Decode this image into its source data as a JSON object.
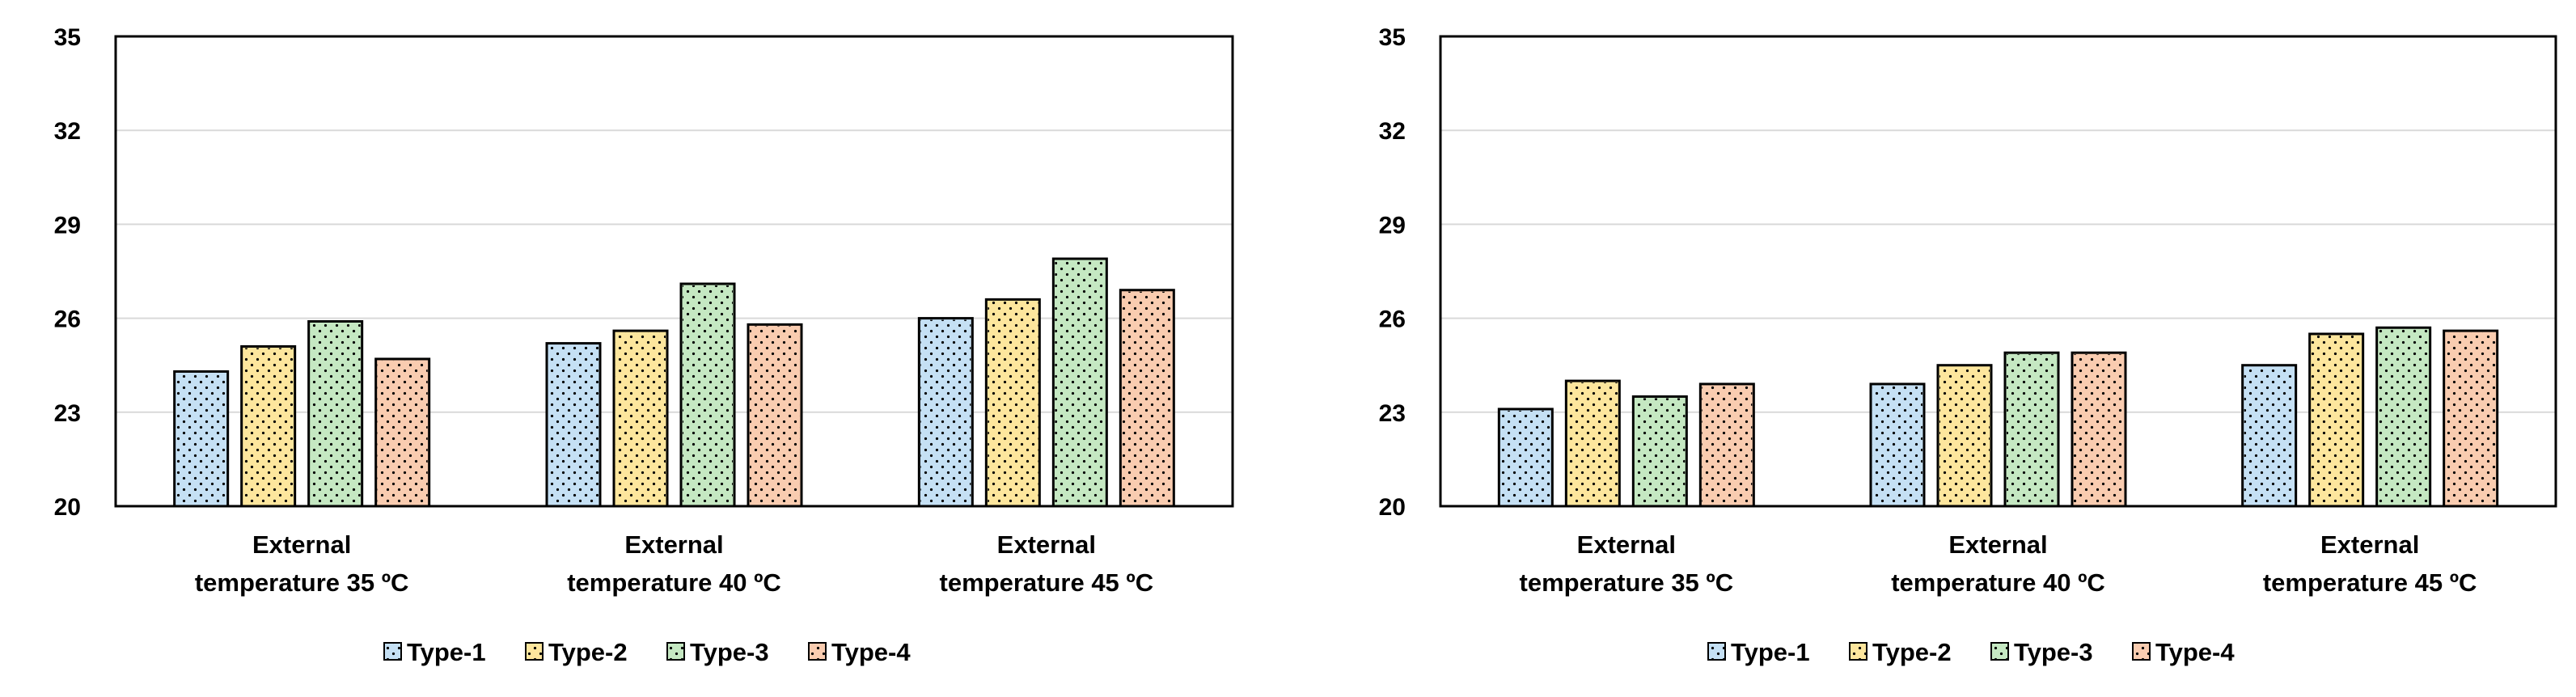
{
  "chart_data": [
    {
      "type": "bar",
      "title": "",
      "xlabel": "",
      "ylabel": "",
      "ylim": [
        20,
        35
      ],
      "yticks": [
        "20",
        "23",
        "26",
        "29",
        "32",
        "35"
      ],
      "grid": true,
      "legend_position": "bottom",
      "categories": [
        [
          "External",
          "temperature 35 ºC"
        ],
        [
          "External",
          "temperature 40 ºC"
        ],
        [
          "External",
          "temperature 45 ºC"
        ]
      ],
      "series": [
        {
          "name": "Type-1",
          "color": "#c5e0f4",
          "values": [
            24.3,
            25.2,
            26.0
          ]
        },
        {
          "name": "Type-2",
          "color": "#fde69d",
          "values": [
            25.1,
            25.6,
            26.6
          ]
        },
        {
          "name": "Type-3",
          "color": "#c5e8c2",
          "values": [
            25.9,
            27.1,
            27.9
          ]
        },
        {
          "name": "Type-4",
          "color": "#f9ccb0",
          "values": [
            24.7,
            25.8,
            26.9
          ]
        }
      ]
    },
    {
      "type": "bar",
      "title": "",
      "xlabel": "",
      "ylabel": "",
      "ylim": [
        20,
        35
      ],
      "yticks": [
        "20",
        "23",
        "26",
        "29",
        "32",
        "35"
      ],
      "grid": true,
      "legend_position": "bottom",
      "categories": [
        [
          "External",
          "temperature 35 ºC"
        ],
        [
          "External",
          "temperature 40 ºC"
        ],
        [
          "External",
          "temperature 45 ºC"
        ]
      ],
      "series": [
        {
          "name": "Type-1",
          "color": "#c5e0f4",
          "values": [
            23.1,
            23.9,
            24.5
          ]
        },
        {
          "name": "Type-2",
          "color": "#fde69d",
          "values": [
            24.0,
            24.5,
            25.5
          ]
        },
        {
          "name": "Type-3",
          "color": "#c5e8c2",
          "values": [
            23.5,
            24.9,
            25.7
          ]
        },
        {
          "name": "Type-4",
          "color": "#f9ccb0",
          "values": [
            23.9,
            24.9,
            25.6
          ]
        }
      ]
    }
  ]
}
